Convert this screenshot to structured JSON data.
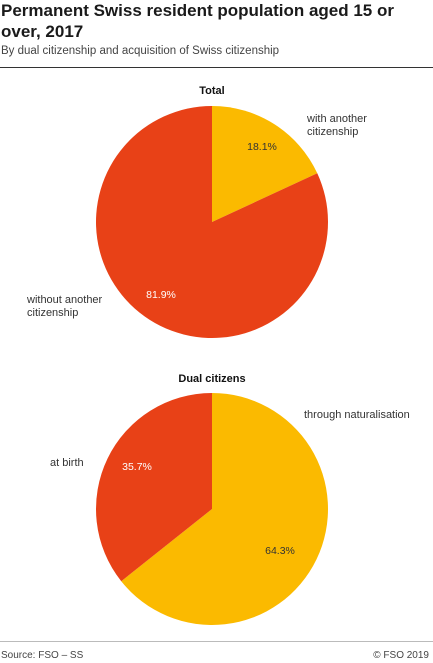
{
  "header": {
    "title": "Permanent Swiss resident population aged 15 or over, 2017",
    "subtitle": "By dual citizenship and acquisition of Swiss citizenship"
  },
  "footer": {
    "source": "Source: FSO – SS",
    "copyright": "© FSO 2019"
  },
  "colors": {
    "orange_red": "#E84117",
    "yellow": "#FBBA00"
  },
  "chart_data": [
    {
      "type": "pie",
      "title": "Total",
      "slices": [
        {
          "label": "with another citizenship",
          "label_lines": [
            "with another",
            "citizenship"
          ],
          "value": 18.1,
          "display": "18.1%",
          "color": "#FBBA00"
        },
        {
          "label": "without another citizenship",
          "label_lines": [
            "without another",
            "citizenship"
          ],
          "value": 81.9,
          "display": "81.9%",
          "color": "#E84117"
        }
      ]
    },
    {
      "type": "pie",
      "title": "Dual citizens",
      "slices": [
        {
          "label": "through naturalisation",
          "label_lines": [
            "through naturalisation"
          ],
          "value": 64.3,
          "display": "64.3%",
          "color": "#FBBA00"
        },
        {
          "label": "at birth",
          "label_lines": [
            "at birth"
          ],
          "value": 35.7,
          "display": "35.7%",
          "color": "#E84117"
        }
      ]
    }
  ]
}
